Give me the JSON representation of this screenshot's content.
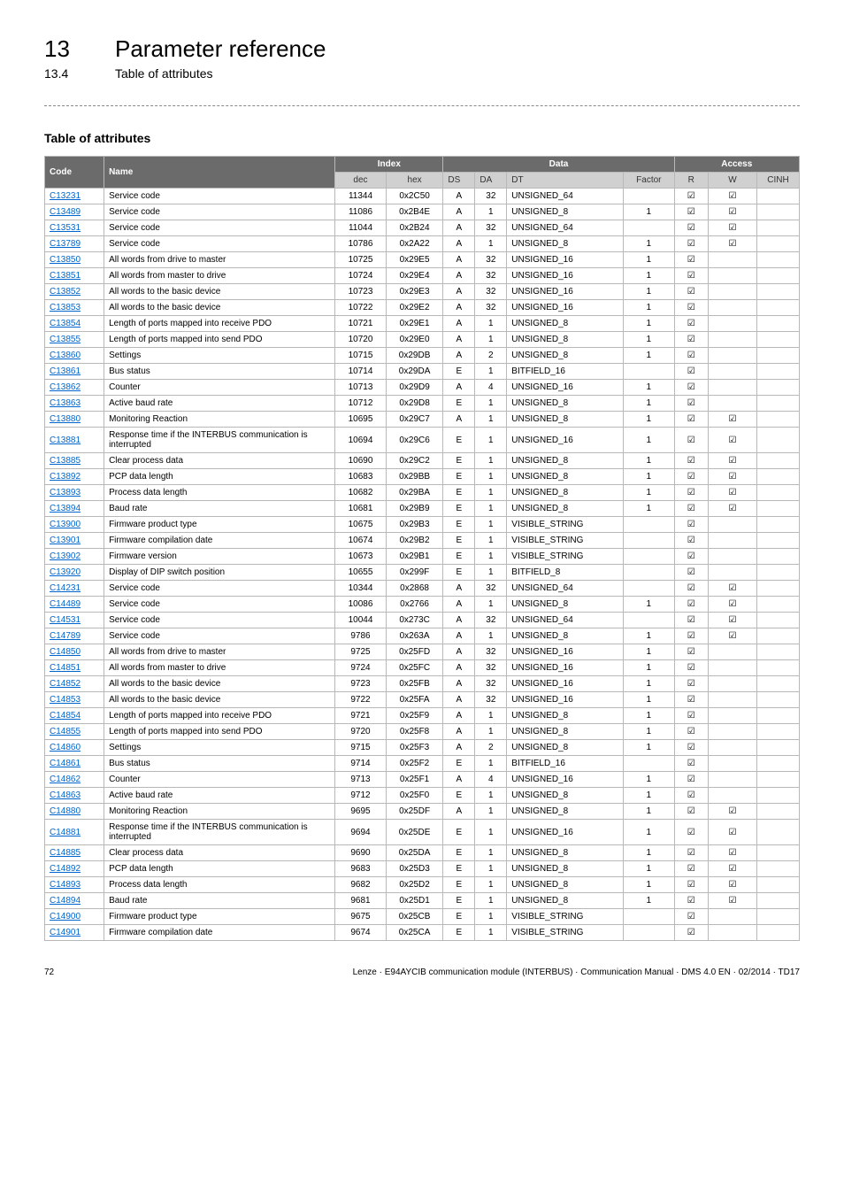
{
  "header": {
    "chapter_num": "13",
    "chapter_title": "Parameter reference",
    "section_num": "13.4",
    "section_title": "Table of attributes"
  },
  "table": {
    "title": "Table of attributes",
    "group_headers": {
      "code": "Code",
      "name": "Name",
      "index": "Index",
      "data": "Data",
      "access": "Access"
    },
    "sub_headers": {
      "dec": "dec",
      "hex": "hex",
      "ds": "DS",
      "da": "DA",
      "dt": "DT",
      "factor": "Factor",
      "r": "R",
      "w": "W",
      "cinh": "CINH"
    },
    "checkmark": "☑",
    "rows": [
      {
        "code": "C13231",
        "name": "Service code",
        "dec": "11344",
        "hex": "0x2C50",
        "ds": "A",
        "da": "32",
        "dt": "UNSIGNED_64",
        "factor": "",
        "r": true,
        "w": true,
        "cinh": false
      },
      {
        "code": "C13489",
        "name": "Service code",
        "dec": "11086",
        "hex": "0x2B4E",
        "ds": "A",
        "da": "1",
        "dt": "UNSIGNED_8",
        "factor": "1",
        "r": true,
        "w": true,
        "cinh": false
      },
      {
        "code": "C13531",
        "name": "Service code",
        "dec": "11044",
        "hex": "0x2B24",
        "ds": "A",
        "da": "32",
        "dt": "UNSIGNED_64",
        "factor": "",
        "r": true,
        "w": true,
        "cinh": false
      },
      {
        "code": "C13789",
        "name": "Service code",
        "dec": "10786",
        "hex": "0x2A22",
        "ds": "A",
        "da": "1",
        "dt": "UNSIGNED_8",
        "factor": "1",
        "r": true,
        "w": true,
        "cinh": false
      },
      {
        "code": "C13850",
        "name": "All words from drive to master",
        "dec": "10725",
        "hex": "0x29E5",
        "ds": "A",
        "da": "32",
        "dt": "UNSIGNED_16",
        "factor": "1",
        "r": true,
        "w": false,
        "cinh": false
      },
      {
        "code": "C13851",
        "name": "All words from master to drive",
        "dec": "10724",
        "hex": "0x29E4",
        "ds": "A",
        "da": "32",
        "dt": "UNSIGNED_16",
        "factor": "1",
        "r": true,
        "w": false,
        "cinh": false
      },
      {
        "code": "C13852",
        "name": "All words to the basic device",
        "dec": "10723",
        "hex": "0x29E3",
        "ds": "A",
        "da": "32",
        "dt": "UNSIGNED_16",
        "factor": "1",
        "r": true,
        "w": false,
        "cinh": false
      },
      {
        "code": "C13853",
        "name": "All words to the basic device",
        "dec": "10722",
        "hex": "0x29E2",
        "ds": "A",
        "da": "32",
        "dt": "UNSIGNED_16",
        "factor": "1",
        "r": true,
        "w": false,
        "cinh": false
      },
      {
        "code": "C13854",
        "name": "Length of ports mapped into receive PDO",
        "dec": "10721",
        "hex": "0x29E1",
        "ds": "A",
        "da": "1",
        "dt": "UNSIGNED_8",
        "factor": "1",
        "r": true,
        "w": false,
        "cinh": false
      },
      {
        "code": "C13855",
        "name": "Length of ports mapped into send PDO",
        "dec": "10720",
        "hex": "0x29E0",
        "ds": "A",
        "da": "1",
        "dt": "UNSIGNED_8",
        "factor": "1",
        "r": true,
        "w": false,
        "cinh": false
      },
      {
        "code": "C13860",
        "name": "Settings",
        "dec": "10715",
        "hex": "0x29DB",
        "ds": "A",
        "da": "2",
        "dt": "UNSIGNED_8",
        "factor": "1",
        "r": true,
        "w": false,
        "cinh": false
      },
      {
        "code": "C13861",
        "name": "Bus status",
        "dec": "10714",
        "hex": "0x29DA",
        "ds": "E",
        "da": "1",
        "dt": "BITFIELD_16",
        "factor": "",
        "r": true,
        "w": false,
        "cinh": false
      },
      {
        "code": "C13862",
        "name": "Counter",
        "dec": "10713",
        "hex": "0x29D9",
        "ds": "A",
        "da": "4",
        "dt": "UNSIGNED_16",
        "factor": "1",
        "r": true,
        "w": false,
        "cinh": false
      },
      {
        "code": "C13863",
        "name": "Active baud rate",
        "dec": "10712",
        "hex": "0x29D8",
        "ds": "E",
        "da": "1",
        "dt": "UNSIGNED_8",
        "factor": "1",
        "r": true,
        "w": false,
        "cinh": false
      },
      {
        "code": "C13880",
        "name": "Monitoring Reaction",
        "dec": "10695",
        "hex": "0x29C7",
        "ds": "A",
        "da": "1",
        "dt": "UNSIGNED_8",
        "factor": "1",
        "r": true,
        "w": true,
        "cinh": false
      },
      {
        "code": "C13881",
        "name": "Response time if the INTERBUS communication is interrupted",
        "dec": "10694",
        "hex": "0x29C6",
        "ds": "E",
        "da": "1",
        "dt": "UNSIGNED_16",
        "factor": "1",
        "r": true,
        "w": true,
        "cinh": false
      },
      {
        "code": "C13885",
        "name": "Clear process data",
        "dec": "10690",
        "hex": "0x29C2",
        "ds": "E",
        "da": "1",
        "dt": "UNSIGNED_8",
        "factor": "1",
        "r": true,
        "w": true,
        "cinh": false
      },
      {
        "code": "C13892",
        "name": "PCP data length",
        "dec": "10683",
        "hex": "0x29BB",
        "ds": "E",
        "da": "1",
        "dt": "UNSIGNED_8",
        "factor": "1",
        "r": true,
        "w": true,
        "cinh": false
      },
      {
        "code": "C13893",
        "name": "Process data length",
        "dec": "10682",
        "hex": "0x29BA",
        "ds": "E",
        "da": "1",
        "dt": "UNSIGNED_8",
        "factor": "1",
        "r": true,
        "w": true,
        "cinh": false
      },
      {
        "code": "C13894",
        "name": "Baud rate",
        "dec": "10681",
        "hex": "0x29B9",
        "ds": "E",
        "da": "1",
        "dt": "UNSIGNED_8",
        "factor": "1",
        "r": true,
        "w": true,
        "cinh": false
      },
      {
        "code": "C13900",
        "name": "Firmware product type",
        "dec": "10675",
        "hex": "0x29B3",
        "ds": "E",
        "da": "1",
        "dt": "VISIBLE_STRING",
        "factor": "",
        "r": true,
        "w": false,
        "cinh": false
      },
      {
        "code": "C13901",
        "name": "Firmware compilation date",
        "dec": "10674",
        "hex": "0x29B2",
        "ds": "E",
        "da": "1",
        "dt": "VISIBLE_STRING",
        "factor": "",
        "r": true,
        "w": false,
        "cinh": false
      },
      {
        "code": "C13902",
        "name": "Firmware version",
        "dec": "10673",
        "hex": "0x29B1",
        "ds": "E",
        "da": "1",
        "dt": "VISIBLE_STRING",
        "factor": "",
        "r": true,
        "w": false,
        "cinh": false
      },
      {
        "code": "C13920",
        "name": "Display of DIP switch position",
        "dec": "10655",
        "hex": "0x299F",
        "ds": "E",
        "da": "1",
        "dt": "BITFIELD_8",
        "factor": "",
        "r": true,
        "w": false,
        "cinh": false
      },
      {
        "code": "C14231",
        "name": "Service code",
        "dec": "10344",
        "hex": "0x2868",
        "ds": "A",
        "da": "32",
        "dt": "UNSIGNED_64",
        "factor": "",
        "r": true,
        "w": true,
        "cinh": false
      },
      {
        "code": "C14489",
        "name": "Service code",
        "dec": "10086",
        "hex": "0x2766",
        "ds": "A",
        "da": "1",
        "dt": "UNSIGNED_8",
        "factor": "1",
        "r": true,
        "w": true,
        "cinh": false
      },
      {
        "code": "C14531",
        "name": "Service code",
        "dec": "10044",
        "hex": "0x273C",
        "ds": "A",
        "da": "32",
        "dt": "UNSIGNED_64",
        "factor": "",
        "r": true,
        "w": true,
        "cinh": false
      },
      {
        "code": "C14789",
        "name": "Service code",
        "dec": "9786",
        "hex": "0x263A",
        "ds": "A",
        "da": "1",
        "dt": "UNSIGNED_8",
        "factor": "1",
        "r": true,
        "w": true,
        "cinh": false
      },
      {
        "code": "C14850",
        "name": "All words from drive to master",
        "dec": "9725",
        "hex": "0x25FD",
        "ds": "A",
        "da": "32",
        "dt": "UNSIGNED_16",
        "factor": "1",
        "r": true,
        "w": false,
        "cinh": false
      },
      {
        "code": "C14851",
        "name": "All words from master to drive",
        "dec": "9724",
        "hex": "0x25FC",
        "ds": "A",
        "da": "32",
        "dt": "UNSIGNED_16",
        "factor": "1",
        "r": true,
        "w": false,
        "cinh": false
      },
      {
        "code": "C14852",
        "name": "All words to the basic device",
        "dec": "9723",
        "hex": "0x25FB",
        "ds": "A",
        "da": "32",
        "dt": "UNSIGNED_16",
        "factor": "1",
        "r": true,
        "w": false,
        "cinh": false
      },
      {
        "code": "C14853",
        "name": "All words to the basic device",
        "dec": "9722",
        "hex": "0x25FA",
        "ds": "A",
        "da": "32",
        "dt": "UNSIGNED_16",
        "factor": "1",
        "r": true,
        "w": false,
        "cinh": false
      },
      {
        "code": "C14854",
        "name": "Length of ports mapped into receive PDO",
        "dec": "9721",
        "hex": "0x25F9",
        "ds": "A",
        "da": "1",
        "dt": "UNSIGNED_8",
        "factor": "1",
        "r": true,
        "w": false,
        "cinh": false
      },
      {
        "code": "C14855",
        "name": "Length of ports mapped into send PDO",
        "dec": "9720",
        "hex": "0x25F8",
        "ds": "A",
        "da": "1",
        "dt": "UNSIGNED_8",
        "factor": "1",
        "r": true,
        "w": false,
        "cinh": false
      },
      {
        "code": "C14860",
        "name": "Settings",
        "dec": "9715",
        "hex": "0x25F3",
        "ds": "A",
        "da": "2",
        "dt": "UNSIGNED_8",
        "factor": "1",
        "r": true,
        "w": false,
        "cinh": false
      },
      {
        "code": "C14861",
        "name": "Bus status",
        "dec": "9714",
        "hex": "0x25F2",
        "ds": "E",
        "da": "1",
        "dt": "BITFIELD_16",
        "factor": "",
        "r": true,
        "w": false,
        "cinh": false
      },
      {
        "code": "C14862",
        "name": "Counter",
        "dec": "9713",
        "hex": "0x25F1",
        "ds": "A",
        "da": "4",
        "dt": "UNSIGNED_16",
        "factor": "1",
        "r": true,
        "w": false,
        "cinh": false
      },
      {
        "code": "C14863",
        "name": "Active baud rate",
        "dec": "9712",
        "hex": "0x25F0",
        "ds": "E",
        "da": "1",
        "dt": "UNSIGNED_8",
        "factor": "1",
        "r": true,
        "w": false,
        "cinh": false
      },
      {
        "code": "C14880",
        "name": "Monitoring Reaction",
        "dec": "9695",
        "hex": "0x25DF",
        "ds": "A",
        "da": "1",
        "dt": "UNSIGNED_8",
        "factor": "1",
        "r": true,
        "w": true,
        "cinh": false
      },
      {
        "code": "C14881",
        "name": "Response time if the INTERBUS communication is interrupted",
        "dec": "9694",
        "hex": "0x25DE",
        "ds": "E",
        "da": "1",
        "dt": "UNSIGNED_16",
        "factor": "1",
        "r": true,
        "w": true,
        "cinh": false
      },
      {
        "code": "C14885",
        "name": "Clear process data",
        "dec": "9690",
        "hex": "0x25DA",
        "ds": "E",
        "da": "1",
        "dt": "UNSIGNED_8",
        "factor": "1",
        "r": true,
        "w": true,
        "cinh": false
      },
      {
        "code": "C14892",
        "name": "PCP data length",
        "dec": "9683",
        "hex": "0x25D3",
        "ds": "E",
        "da": "1",
        "dt": "UNSIGNED_8",
        "factor": "1",
        "r": true,
        "w": true,
        "cinh": false
      },
      {
        "code": "C14893",
        "name": "Process data length",
        "dec": "9682",
        "hex": "0x25D2",
        "ds": "E",
        "da": "1",
        "dt": "UNSIGNED_8",
        "factor": "1",
        "r": true,
        "w": true,
        "cinh": false
      },
      {
        "code": "C14894",
        "name": "Baud rate",
        "dec": "9681",
        "hex": "0x25D1",
        "ds": "E",
        "da": "1",
        "dt": "UNSIGNED_8",
        "factor": "1",
        "r": true,
        "w": true,
        "cinh": false
      },
      {
        "code": "C14900",
        "name": "Firmware product type",
        "dec": "9675",
        "hex": "0x25CB",
        "ds": "E",
        "da": "1",
        "dt": "VISIBLE_STRING",
        "factor": "",
        "r": true,
        "w": false,
        "cinh": false
      },
      {
        "code": "C14901",
        "name": "Firmware compilation date",
        "dec": "9674",
        "hex": "0x25CA",
        "ds": "E",
        "da": "1",
        "dt": "VISIBLE_STRING",
        "factor": "",
        "r": true,
        "w": false,
        "cinh": false
      }
    ]
  },
  "footer": {
    "page": "72",
    "text": "Lenze · E94AYCIB communication module (INTERBUS) · Communication Manual · DMS 4.0 EN · 02/2014 · TD17"
  }
}
